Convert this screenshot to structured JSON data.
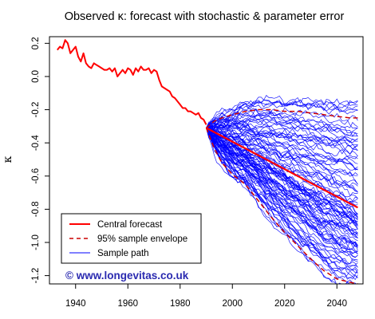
{
  "chart_data": {
    "type": "line",
    "title": "Observed κ: forecast with stochastic & parameter error",
    "xlabel": "",
    "ylabel": "κ",
    "xlim": [
      1930,
      2050
    ],
    "ylim": [
      -1.25,
      0.24
    ],
    "x_ticks": [
      1940,
      1960,
      1980,
      2000,
      2020,
      2040
    ],
    "y_ticks": [
      0.2,
      0.0,
      -0.2,
      -0.4,
      -0.6,
      -0.8,
      -1.0,
      -1.2
    ],
    "y_tick_labels": [
      "0.2",
      "0.0",
      "-0.2",
      "-0.4",
      "-0.6",
      "-0.8",
      "-1.0",
      "-1.2"
    ],
    "grid": false,
    "legend_position": "bottom-left",
    "colors": {
      "observed": "#ff0000",
      "central": "#ff0000",
      "envelope": "#cc0000",
      "paths": "#0000ff"
    },
    "observed": {
      "x": [
        1933,
        1934,
        1935,
        1936,
        1937,
        1938,
        1939,
        1940,
        1941,
        1942,
        1943,
        1944,
        1945,
        1946,
        1947,
        1948,
        1949,
        1950,
        1951,
        1952,
        1953,
        1954,
        1955,
        1956,
        1957,
        1958,
        1959,
        1960,
        1961,
        1962,
        1963,
        1964,
        1965,
        1966,
        1967,
        1968,
        1969,
        1970,
        1971,
        1972,
        1973,
        1974,
        1975,
        1976,
        1977,
        1978,
        1979,
        1980,
        1981,
        1982,
        1983,
        1984,
        1985,
        1986,
        1987,
        1988,
        1989,
        1990
      ],
      "y": [
        0.16,
        0.18,
        0.17,
        0.22,
        0.2,
        0.14,
        0.16,
        0.18,
        0.12,
        0.09,
        0.14,
        0.08,
        0.06,
        0.05,
        0.08,
        0.07,
        0.06,
        0.05,
        0.04,
        0.04,
        0.05,
        0.03,
        0.05,
        0.0,
        0.02,
        0.04,
        0.02,
        0.05,
        0.04,
        0.01,
        0.05,
        0.03,
        0.06,
        0.04,
        0.04,
        0.05,
        0.02,
        0.04,
        0.03,
        -0.02,
        -0.06,
        -0.07,
        -0.08,
        -0.09,
        -0.12,
        -0.13,
        -0.15,
        -0.17,
        -0.19,
        -0.19,
        -0.21,
        -0.21,
        -0.22,
        -0.23,
        -0.22,
        -0.25,
        -0.26,
        -0.29
      ]
    },
    "central_forecast": {
      "x": [
        1990,
        2048
      ],
      "y": [
        -0.31,
        -0.79
      ]
    },
    "envelope_upper": {
      "x": [
        1990,
        1993,
        1996,
        2000,
        2005,
        2010,
        2015,
        2020,
        2025,
        2030,
        2035,
        2040,
        2045,
        2048
      ],
      "y": [
        -0.31,
        -0.27,
        -0.25,
        -0.23,
        -0.21,
        -0.2,
        -0.2,
        -0.21,
        -0.21,
        -0.22,
        -0.23,
        -0.24,
        -0.25,
        -0.25
      ]
    },
    "envelope_lower": {
      "x": [
        1990,
        1993,
        1996,
        2000,
        2005,
        2010,
        2015,
        2020,
        2025,
        2030,
        2035,
        2040,
        2045,
        2048
      ],
      "y": [
        -0.31,
        -0.43,
        -0.52,
        -0.59,
        -0.65,
        -0.75,
        -0.85,
        -0.94,
        -1.02,
        -1.1,
        -1.17,
        -1.22,
        -1.24,
        -1.25
      ]
    },
    "sample_paths": {
      "count": 100,
      "x_start": 1990,
      "x_end": 2048,
      "y_start": -0.31,
      "central_drift_per_year": -0.0083,
      "final_value_range": [
        -1.25,
        -0.1
      ]
    },
    "legend": [
      {
        "label": "Central forecast",
        "style": "solid",
        "series": "central"
      },
      {
        "label": "95% sample envelope",
        "style": "dashed",
        "series": "envelope"
      },
      {
        "label": "Sample path",
        "style": "solid-thin",
        "series": "paths"
      }
    ]
  },
  "watermark": "© www.longevitas.co.uk"
}
